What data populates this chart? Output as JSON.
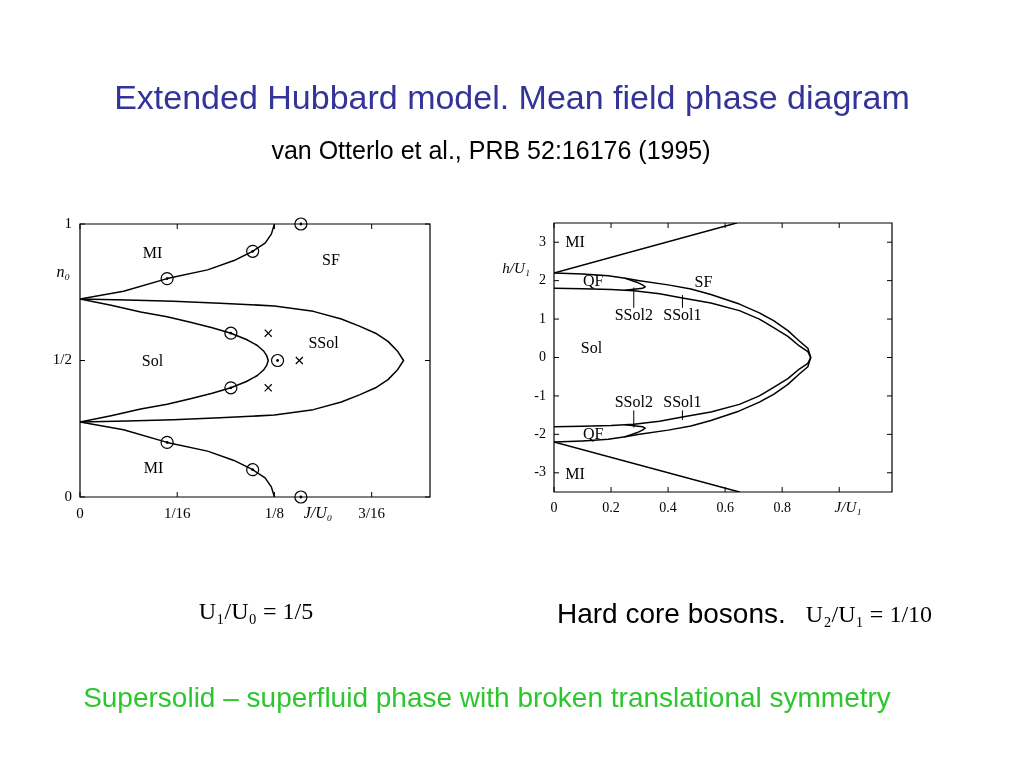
{
  "chart_data": [
    {
      "type": "line",
      "title": "Extended Hubbard model. Mean field phase diagram",
      "subtitle": "van Otterlo et al., PRB 52:16176 (1995)",
      "xlabel": "J/U₀",
      "ylabel": "n₀",
      "xlim": [
        0,
        0.225
      ],
      "ylim": [
        0,
        1
      ],
      "xticks": [
        0,
        {
          "value": 0.0625,
          "label": "1/16"
        },
        {
          "value": 0.125,
          "label": "1/8"
        },
        {
          "value": 0.1875,
          "label": "3/16"
        }
      ],
      "yticks": [
        0,
        {
          "value": 0.5,
          "label": "1/2"
        },
        1
      ],
      "series": [
        {
          "color": "#000000",
          "x": [
            0,
            0.028,
            0.056,
            0.082,
            0.099,
            0.111,
            0.119,
            0.123,
            0.125
          ],
          "values": [
            0.725,
            0.754,
            0.8,
            0.832,
            0.866,
            0.9,
            0.93,
            0.963,
            1
          ]
        },
        {
          "color": "#000000",
          "x": [
            0,
            0.028,
            0.056,
            0.082,
            0.099,
            0.111,
            0.119,
            0.123,
            0.125
          ],
          "values": [
            0.275,
            0.246,
            0.2,
            0.168,
            0.134,
            0.1,
            0.07,
            0.037,
            0
          ]
        },
        {
          "color": "#000000",
          "x": [
            0,
            0.02,
            0.039,
            0.056,
            0.071,
            0.085,
            0.097,
            0.107,
            0.114,
            0.118,
            0.12,
            0.121,
            0.12,
            0.118,
            0.114,
            0.107,
            0.097,
            0.085,
            0.071,
            0.056,
            0.039,
            0.02,
            0
          ],
          "values": [
            0.725,
            0.702,
            0.678,
            0.66,
            0.64,
            0.62,
            0.6,
            0.577,
            0.555,
            0.535,
            0.518,
            0.5,
            0.482,
            0.465,
            0.445,
            0.423,
            0.4,
            0.38,
            0.36,
            0.34,
            0.322,
            0.298,
            0.275
          ]
        },
        {
          "color": "#000000",
          "x": [
            0,
            0.03,
            0.06,
            0.09,
            0.125,
            0.15,
            0.168,
            0.18,
            0.19,
            0.198,
            0.204,
            0.208,
            0.204,
            0.198,
            0.19,
            0.18,
            0.168,
            0.15,
            0.125,
            0.09,
            0.06,
            0.03,
            0
          ],
          "values": [
            0.725,
            0.722,
            0.717,
            0.71,
            0.7,
            0.68,
            0.652,
            0.625,
            0.6,
            0.57,
            0.535,
            0.5,
            0.465,
            0.43,
            0.4,
            0.375,
            0.348,
            0.32,
            0.3,
            0.29,
            0.283,
            0.278,
            0.275
          ]
        },
        {
          "type": "scatter",
          "color": "#000000",
          "marker": "circle",
          "x": [
            0.056,
            0.111,
            0.097,
            0.127,
            0.097,
            0.056,
            0.111,
            0.142,
            0.142
          ],
          "values": [
            0.8,
            0.9,
            0.6,
            0.5,
            0.4,
            0.2,
            0.1,
            1,
            0
          ]
        },
        {
          "type": "scatter",
          "color": "#000000",
          "marker": "cross",
          "x": [
            0.121,
            0.141,
            0.121
          ],
          "values": [
            0.6,
            0.5,
            0.4
          ]
        }
      ],
      "annotations": [
        "MI",
        "SF",
        "SSol",
        "Sol",
        "MI",
        "U₁/U₀ = 1/5"
      ]
    },
    {
      "type": "line",
      "xlabel": "J/U₁",
      "ylabel": "h/U₁",
      "xlim": [
        0,
        1.185
      ],
      "ylim": [
        -3.5,
        3.5
      ],
      "xticks": [
        0,
        0.2,
        0.4,
        0.6,
        0.8,
        {
          "value": 1,
          "label": null
        }
      ],
      "yticks": [
        -3,
        -2,
        -1,
        0,
        1,
        2,
        3
      ],
      "series": [
        {
          "color": "#000000",
          "x": [
            0,
            0.64
          ],
          "values": [
            2.2,
            3.5
          ]
        },
        {
          "color": "#000000",
          "x": [
            0,
            0.65
          ],
          "values": [
            -2.2,
            -3.5
          ]
        },
        {
          "color": "#000000",
          "x": [
            0,
            0.1,
            0.19,
            0.25,
            0.3,
            0.4,
            0.48,
            0.55,
            0.65,
            0.72,
            0.77,
            0.82,
            0.86,
            0.89,
            0.9,
            0.89,
            0.86,
            0.82,
            0.77,
            0.72,
            0.65,
            0.55,
            0.48,
            0.4,
            0.3,
            0.25,
            0.19,
            0.1,
            0
          ],
          "values": [
            2.2,
            2.17,
            2.13,
            2.06,
            2.0,
            1.89,
            1.78,
            1.64,
            1.39,
            1.16,
            0.96,
            0.7,
            0.43,
            0.24,
            0,
            -0.24,
            -0.43,
            -0.7,
            -0.96,
            -1.16,
            -1.39,
            -1.64,
            -1.78,
            -1.89,
            -2.0,
            -2.06,
            -2.13,
            -2.17,
            -2.2
          ]
        },
        {
          "color": "#000000",
          "x": [
            0,
            0.1,
            0.2,
            0.28,
            0.37,
            0.45,
            0.55,
            0.65,
            0.72,
            0.77,
            0.82,
            0.86,
            0.89,
            0.9,
            0.89,
            0.86,
            0.82,
            0.77,
            0.72,
            0.65,
            0.55,
            0.45,
            0.37,
            0.28,
            0.2,
            0.1,
            0
          ],
          "values": [
            1.8,
            1.79,
            1.77,
            1.74,
            1.66,
            1.55,
            1.42,
            1.22,
            1.0,
            0.78,
            0.55,
            0.3,
            0.15,
            0,
            -0.15,
            -0.3,
            -0.55,
            -0.78,
            -1.0,
            -1.22,
            -1.42,
            -1.55,
            -1.66,
            -1.74,
            -1.77,
            -1.79,
            -1.8
          ]
        },
        {
          "color": "#000000",
          "x": [
            0.25,
            0.29,
            0.31,
            0.32,
            0.31,
            0.25
          ],
          "values": [
            2.06,
            1.96,
            1.89,
            1.84,
            1.8,
            1.75
          ]
        },
        {
          "color": "#000000",
          "x": [
            0.25,
            0.29,
            0.31,
            0.32,
            0.31,
            0.25
          ],
          "values": [
            -2.06,
            -1.96,
            -1.89,
            -1.84,
            -1.8,
            -1.75
          ]
        }
      ],
      "annotations": [
        "MI",
        "QF",
        "SF",
        "SSol2",
        "SSol1",
        "Sol",
        "SSol2",
        "SSol1",
        "QF",
        "MI",
        "Hard core bosons.",
        "U₂/U₁ = 1/10",
        "Supersolid – superfluid phase with broken translational symmetry"
      ]
    }
  ]
}
